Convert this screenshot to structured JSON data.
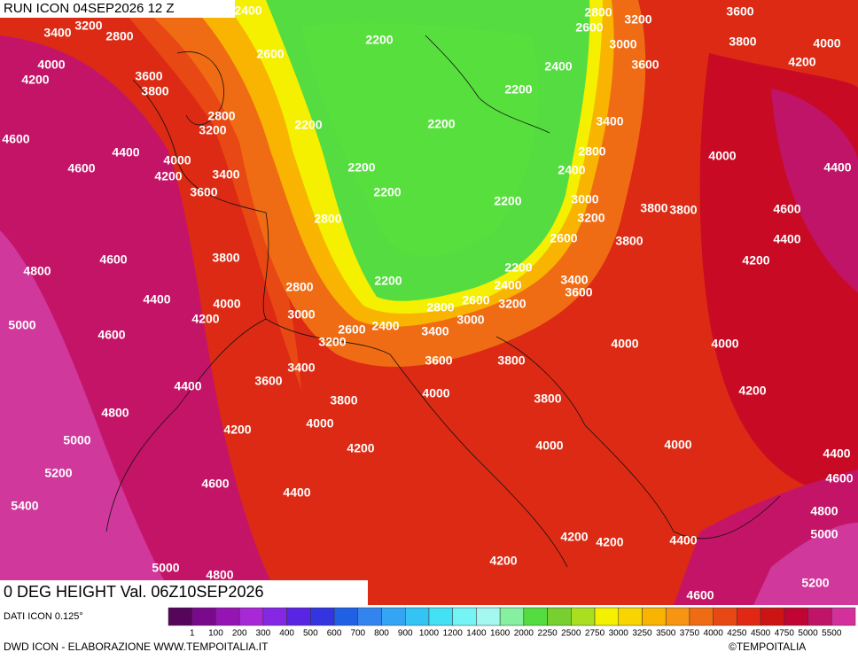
{
  "header": {
    "run": "RUN ICON 04SEP2026 12 Z",
    "valid": "0 DEG HEIGHT Val. 06Z10SEP2026"
  },
  "contour_labels": [
    "2400",
    "3400",
    "3200",
    "2800",
    "2200",
    "2600",
    "2800",
    "3200",
    "2600",
    "3600",
    "3000",
    "3800",
    "4000",
    "4000",
    "4200",
    "3600",
    "3800",
    "2400",
    "3600",
    "4200",
    "2200",
    "2800",
    "3200",
    "2200",
    "2200",
    "3400",
    "4600",
    "4400",
    "4000",
    "2800",
    "4000",
    "4600",
    "4200",
    "3400",
    "2200",
    "2400",
    "4400",
    "3600",
    "2200",
    "2200",
    "3000",
    "3800",
    "3800",
    "4600",
    "2800",
    "3200",
    "4400",
    "2600",
    "3800",
    "3800",
    "4600",
    "4200",
    "4800",
    "2200",
    "2800",
    "2200",
    "2400",
    "3400",
    "3600",
    "4400",
    "4000",
    "2600",
    "2800",
    "3200",
    "4200",
    "3000",
    "5000",
    "2600",
    "2400",
    "3000",
    "3400",
    "3200",
    "4600",
    "4000",
    "4000",
    "3600",
    "3800",
    "3400",
    "3600",
    "4400",
    "4000",
    "4200",
    "3800",
    "3800",
    "4800",
    "4000",
    "4200",
    "5000",
    "4000",
    "4000",
    "4200",
    "4400",
    "5200",
    "4600",
    "4600",
    "4400",
    "5400",
    "4800",
    "5000",
    "4200",
    "4200",
    "4400",
    "4200",
    "5000",
    "4800",
    "5200",
    "4600"
  ],
  "legend": {
    "source": "DATI ICON 0.125°",
    "colors": [
      "#55055a",
      "#7a0a8c",
      "#9414b4",
      "#a828d8",
      "#8428e4",
      "#5a24e4",
      "#3434e0",
      "#2060e4",
      "#3484f0",
      "#34a4f4",
      "#34c4f4",
      "#44e0f4",
      "#74f4f4",
      "#a4f8f0",
      "#84f0a0",
      "#54dc40",
      "#78d030",
      "#a8e020",
      "#f4f000",
      "#f8d400",
      "#f8b400",
      "#f89414",
      "#f06c14",
      "#e84814",
      "#e02814",
      "#cc1414",
      "#c00434",
      "#c01468",
      "#d4309c"
    ],
    "labels": [
      "1",
      "100",
      "200",
      "300",
      "400",
      "500",
      "600",
      "700",
      "800",
      "900",
      "1000",
      "1200",
      "1400",
      "1600",
      "2000",
      "2250",
      "2500",
      "2750",
      "3000",
      "3250",
      "3500",
      "3750",
      "4000",
      "4250",
      "4500",
      "4750",
      "5000",
      "5500"
    ]
  },
  "footer": {
    "credit": "DWD ICON - ELABORAZIONE WWW.TEMPOITALIA.IT",
    "copyright": "©TEMPOITALIA"
  }
}
